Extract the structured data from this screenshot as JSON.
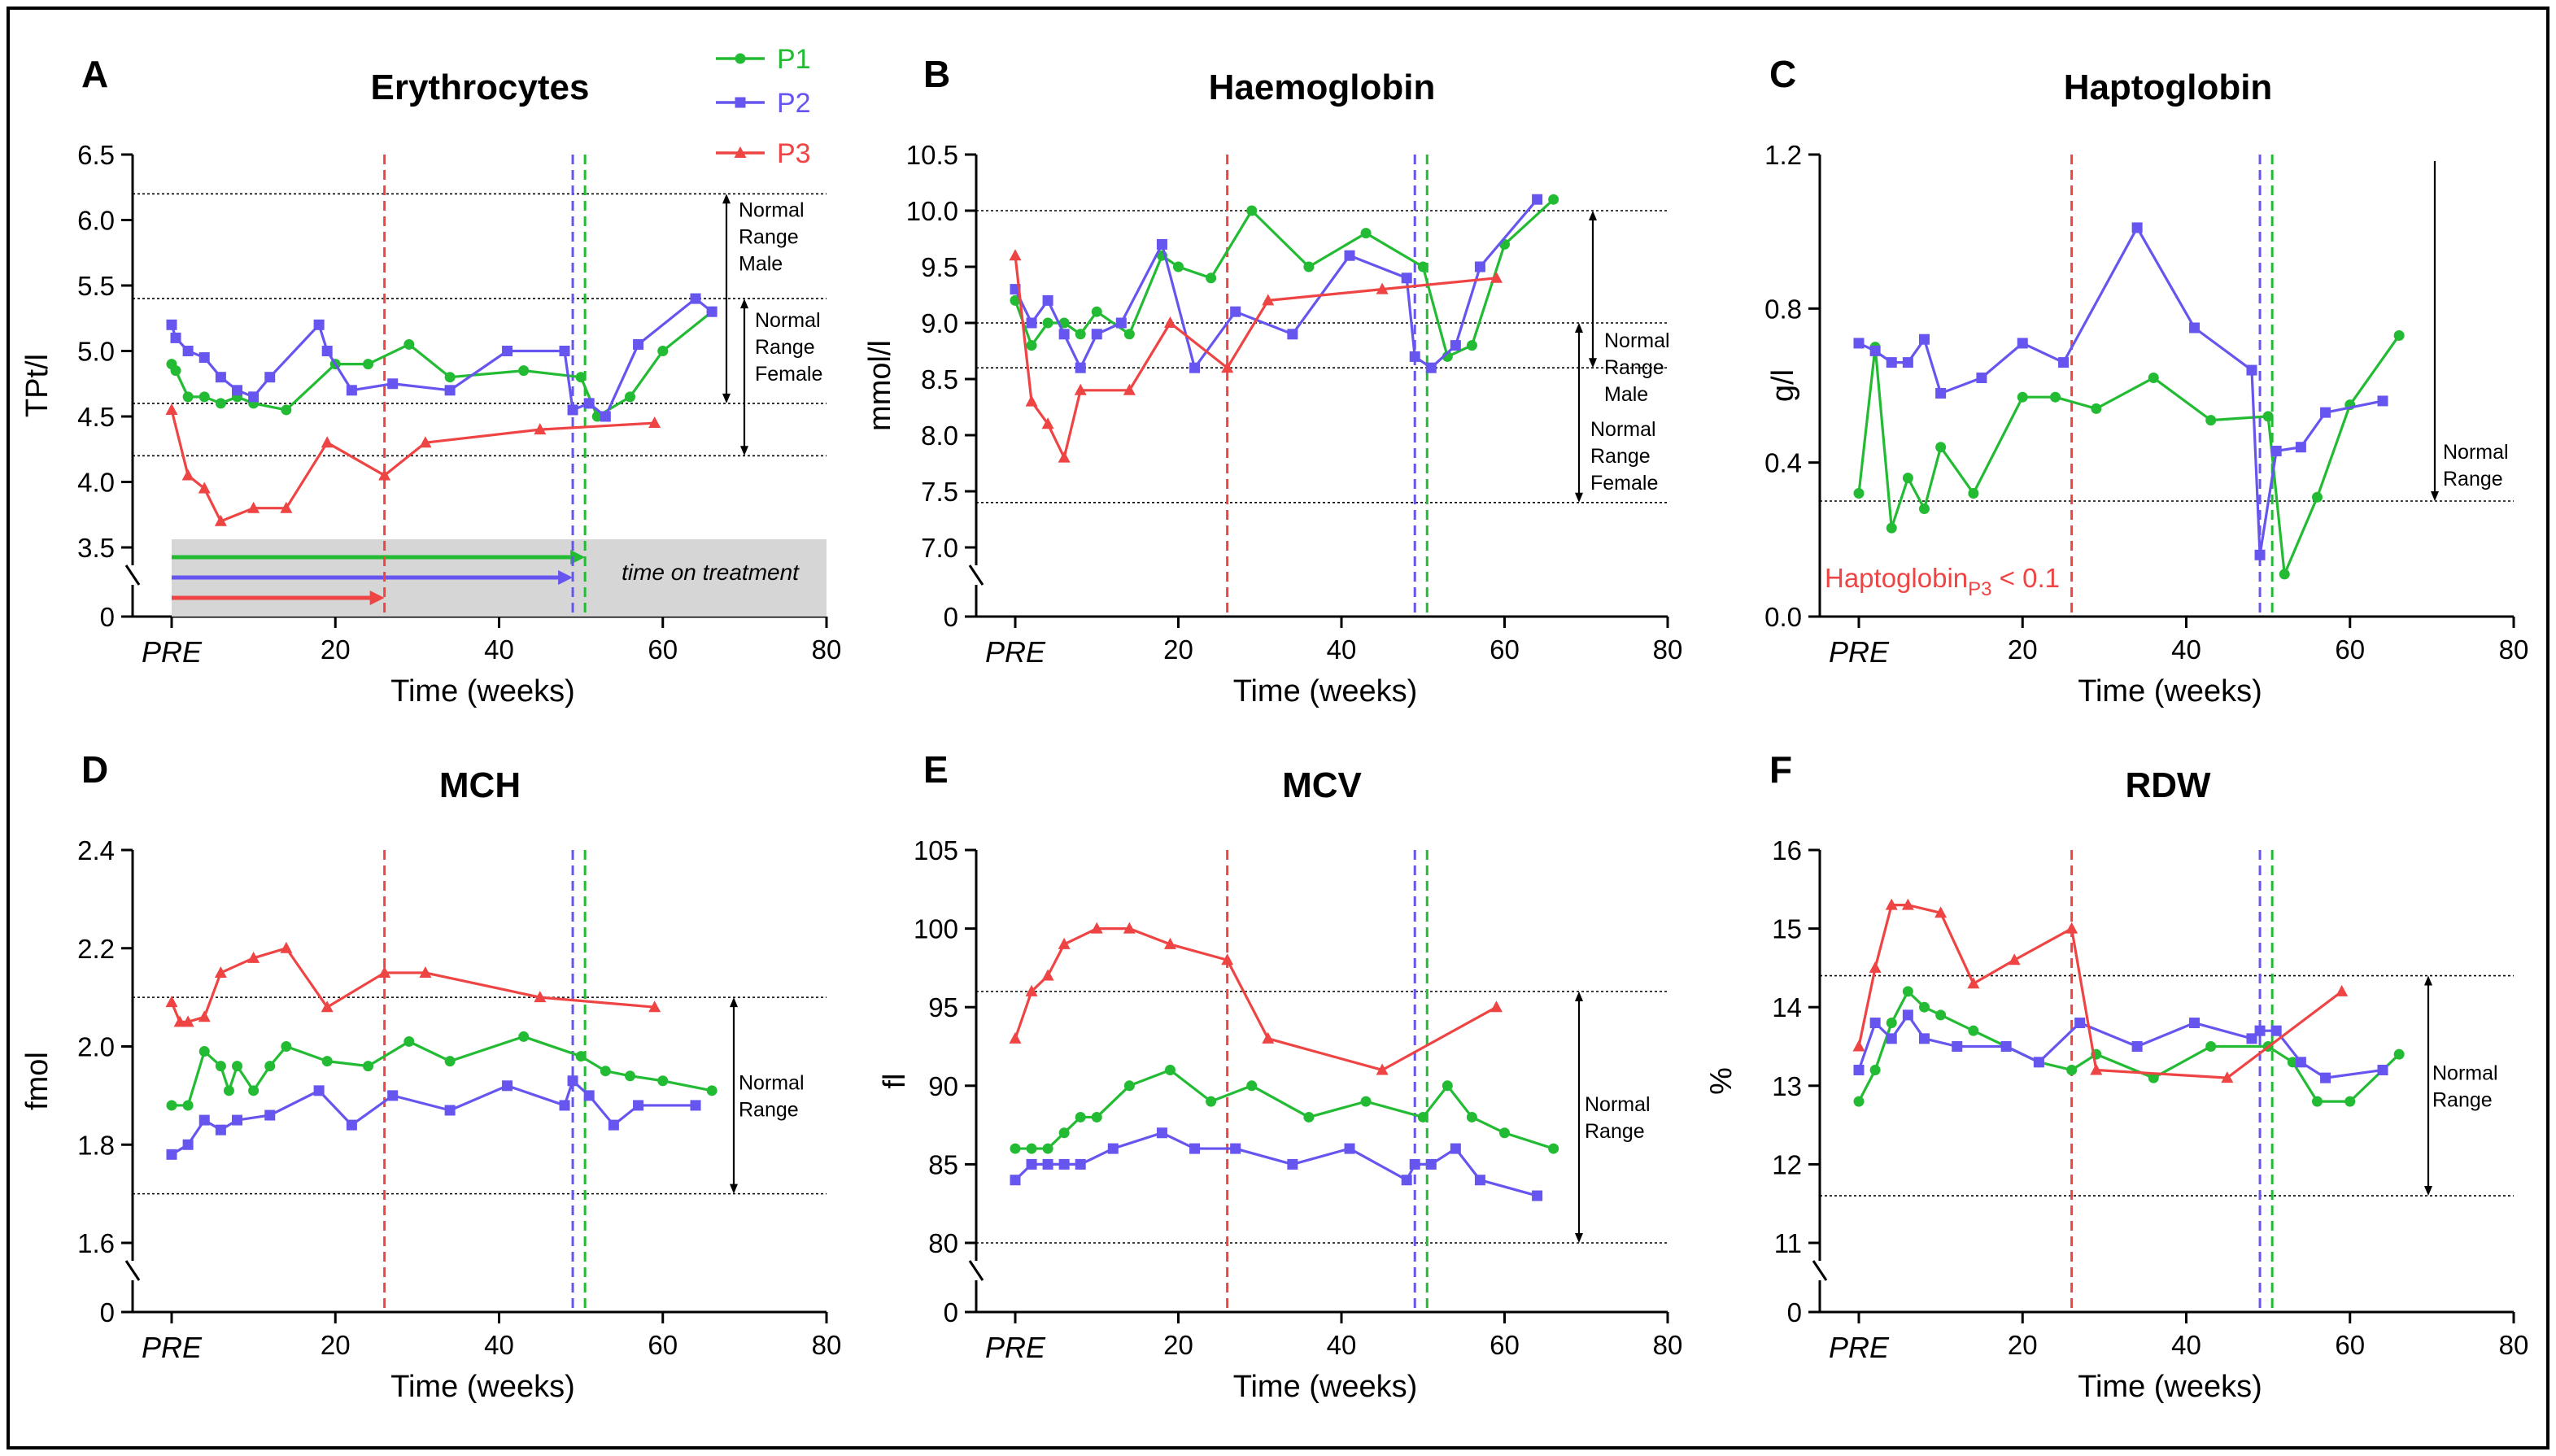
{
  "figure": {
    "x_axis_label": "Time (weeks)",
    "pre_label": "PRE",
    "x_ticks": [
      "20",
      "40",
      "60",
      "80"
    ],
    "zero_label": "0",
    "series_colors": {
      "P1": "#22bb33",
      "P2": "#6655ee",
      "P3": "#ee4444"
    },
    "legend": [
      {
        "name": "P1",
        "color": "#22bb33",
        "marker": "circle"
      },
      {
        "name": "P2",
        "color": "#6655ee",
        "marker": "square"
      },
      {
        "name": "P3",
        "color": "#ee4444",
        "marker": "triangle"
      }
    ],
    "treatment_stop_lines": {
      "P3": 26,
      "P2": 49,
      "P1": 50.5
    }
  },
  "chart_data": [
    {
      "id": "A",
      "letter": "A",
      "title": "Erythrocytes",
      "type": "line",
      "ylabel": "TPt/l",
      "ylim": [
        3.5,
        6.5
      ],
      "yticks": [
        "3.5",
        "4.0",
        "4.5",
        "5.0",
        "5.5",
        "6.0",
        "6.5"
      ],
      "normal_ranges": [
        {
          "low": 4.6,
          "high": 6.2,
          "lines": [
            "Normal",
            "Range",
            "Male"
          ]
        },
        {
          "low": 4.2,
          "high": 5.4,
          "lines": [
            "Normal",
            "Range",
            "Female"
          ]
        }
      ],
      "treatment_annotation": "time on treatment",
      "treatment_durations": {
        "P1": 50.5,
        "P2": 49,
        "P3": 26
      },
      "series": [
        {
          "name": "P1",
          "x": [
            0,
            0.5,
            2,
            4,
            6,
            8,
            10,
            14,
            20,
            24,
            29,
            34,
            43,
            50,
            52,
            56,
            60,
            66
          ],
          "values": [
            4.9,
            4.85,
            4.65,
            4.65,
            4.6,
            4.65,
            4.6,
            4.55,
            4.9,
            4.9,
            5.05,
            4.8,
            4.85,
            4.8,
            4.5,
            4.65,
            5.0,
            5.3
          ]
        },
        {
          "name": "P2",
          "x": [
            0,
            0.5,
            2,
            4,
            6,
            8,
            10,
            12,
            18,
            19,
            22,
            27,
            34,
            41,
            48,
            49,
            51,
            53,
            57,
            64,
            66
          ],
          "values": [
            5.2,
            5.1,
            5.0,
            4.95,
            4.8,
            4.7,
            4.65,
            4.8,
            5.2,
            5.0,
            4.7,
            4.75,
            4.7,
            5.0,
            5.0,
            4.55,
            4.6,
            4.5,
            5.05,
            5.4,
            5.3
          ]
        },
        {
          "name": "P3",
          "x": [
            0,
            2,
            4,
            6,
            10,
            14,
            19,
            26,
            31,
            45,
            59
          ],
          "values": [
            4.55,
            4.05,
            3.95,
            3.7,
            3.8,
            3.8,
            4.3,
            4.05,
            4.3,
            4.4,
            4.45
          ]
        }
      ]
    },
    {
      "id": "B",
      "letter": "B",
      "title": "Haemoglobin",
      "type": "line",
      "ylabel": "mmol/l",
      "ylim": [
        7.0,
        10.5
      ],
      "yticks": [
        "7.0",
        "7.5",
        "8.0",
        "8.5",
        "9.0",
        "9.5",
        "10.0",
        "10.5"
      ],
      "normal_ranges": [
        {
          "low": 8.6,
          "high": 10.0,
          "lines": [
            "Normal",
            "Range",
            "Male"
          ]
        },
        {
          "low": 7.4,
          "high": 9.0,
          "lines": [
            "Normal",
            "Range",
            "Female"
          ]
        }
      ],
      "series": [
        {
          "name": "P1",
          "x": [
            0,
            2,
            4,
            6,
            8,
            10,
            14,
            18,
            20,
            24,
            29,
            36,
            43,
            50,
            53,
            56,
            60,
            66
          ],
          "values": [
            9.2,
            8.8,
            9.0,
            9.0,
            8.9,
            9.1,
            8.9,
            9.6,
            9.5,
            9.4,
            10.0,
            9.5,
            9.8,
            9.5,
            8.7,
            8.8,
            9.7,
            10.1
          ]
        },
        {
          "name": "P2",
          "x": [
            0,
            2,
            4,
            6,
            8,
            10,
            13,
            18,
            22,
            27,
            34,
            41,
            48,
            49,
            51,
            54,
            57,
            64
          ],
          "values": [
            9.3,
            9.0,
            9.2,
            8.9,
            8.6,
            8.9,
            9.0,
            9.7,
            8.6,
            9.1,
            8.9,
            9.6,
            9.4,
            8.7,
            8.6,
            8.8,
            9.5,
            10.1
          ]
        },
        {
          "name": "P3",
          "x": [
            0,
            2,
            4,
            6,
            8,
            14,
            19,
            26,
            31,
            45,
            59
          ],
          "values": [
            9.6,
            8.3,
            8.1,
            7.8,
            8.4,
            8.4,
            9.0,
            8.6,
            9.2,
            9.3,
            9.4
          ]
        }
      ]
    },
    {
      "id": "C",
      "letter": "C",
      "title": "Haptoglobin",
      "type": "line",
      "ylabel": "g/l",
      "ylim": [
        0.0,
        1.2
      ],
      "yticks": [
        "0.0",
        "0.4",
        "0.8",
        "1.2"
      ],
      "normal_ranges": [
        {
          "low": 0.3,
          "high": null,
          "lines": [
            "Normal",
            "Range"
          ]
        }
      ],
      "annotation": {
        "text": "Haptoglobin",
        "sub": "P3",
        "suffix": " < 0.1",
        "color": "#ee4444"
      },
      "series": [
        {
          "name": "P1",
          "x": [
            0,
            2,
            4,
            6,
            8,
            10,
            14,
            20,
            24,
            29,
            36,
            43,
            50,
            52,
            56,
            60,
            66
          ],
          "values": [
            0.32,
            0.7,
            0.23,
            0.36,
            0.28,
            0.44,
            0.32,
            0.57,
            0.57,
            0.54,
            0.62,
            0.51,
            0.52,
            0.11,
            0.31,
            0.55,
            0.73
          ]
        },
        {
          "name": "P2",
          "x": [
            0,
            2,
            4,
            6,
            8,
            10,
            15,
            20,
            25,
            34,
            41,
            48,
            49,
            51,
            54,
            57,
            64
          ],
          "values": [
            0.71,
            0.69,
            0.66,
            0.66,
            0.72,
            0.58,
            0.62,
            0.71,
            0.66,
            1.01,
            0.75,
            0.64,
            0.16,
            0.43,
            0.44,
            0.53,
            0.56
          ]
        }
      ]
    },
    {
      "id": "D",
      "letter": "D",
      "title": "MCH",
      "type": "line",
      "ylabel": "fmol",
      "ylim": [
        1.6,
        2.4
      ],
      "yticks": [
        "1.6",
        "1.8",
        "2.0",
        "2.2",
        "2.4"
      ],
      "normal_ranges": [
        {
          "low": 1.7,
          "high": 2.1,
          "lines": [
            "Normal",
            "Range"
          ]
        }
      ],
      "series": [
        {
          "name": "P1",
          "x": [
            0,
            2,
            4,
            6,
            7,
            8,
            10,
            12,
            14,
            19,
            24,
            29,
            34,
            43,
            50,
            53,
            56,
            60,
            66
          ],
          "values": [
            1.88,
            1.88,
            1.99,
            1.96,
            1.91,
            1.96,
            1.91,
            1.96,
            2.0,
            1.97,
            1.96,
            2.01,
            1.97,
            2.02,
            1.98,
            1.95,
            1.94,
            1.93,
            1.91
          ]
        },
        {
          "name": "P2",
          "x": [
            0,
            2,
            4,
            6,
            8,
            12,
            18,
            22,
            27,
            34,
            41,
            48,
            49,
            51,
            54,
            57,
            64
          ],
          "values": [
            1.78,
            1.8,
            1.85,
            1.83,
            1.85,
            1.86,
            1.91,
            1.84,
            1.9,
            1.87,
            1.92,
            1.88,
            1.93,
            1.9,
            1.84,
            1.88,
            1.88
          ]
        },
        {
          "name": "P3",
          "x": [
            0,
            1,
            2,
            4,
            6,
            10,
            14,
            19,
            26,
            31,
            45,
            59
          ],
          "values": [
            2.09,
            2.05,
            2.05,
            2.06,
            2.15,
            2.18,
            2.2,
            2.08,
            2.15,
            2.15,
            2.1,
            2.08
          ]
        }
      ]
    },
    {
      "id": "E",
      "letter": "E",
      "title": "MCV",
      "type": "line",
      "ylabel": "fl",
      "ylim": [
        80,
        105
      ],
      "yticks": [
        "80",
        "85",
        "90",
        "95",
        "100",
        "105"
      ],
      "normal_ranges": [
        {
          "low": 80,
          "high": 96,
          "lines": [
            "Normal",
            "Range"
          ]
        }
      ],
      "series": [
        {
          "name": "P1",
          "x": [
            0,
            2,
            4,
            6,
            8,
            10,
            14,
            19,
            24,
            29,
            36,
            43,
            50,
            53,
            56,
            60,
            66
          ],
          "values": [
            86,
            86,
            86,
            87,
            88,
            88,
            90,
            91,
            89,
            90,
            88,
            89,
            88,
            90,
            88,
            87,
            86
          ]
        },
        {
          "name": "P2",
          "x": [
            0,
            2,
            4,
            6,
            8,
            12,
            18,
            22,
            27,
            34,
            41,
            48,
            49,
            51,
            54,
            57,
            64
          ],
          "values": [
            84,
            85,
            85,
            85,
            85,
            86,
            87,
            86,
            86,
            85,
            86,
            84,
            85,
            85,
            86,
            84,
            83
          ]
        },
        {
          "name": "P3",
          "x": [
            0,
            2,
            4,
            6,
            10,
            14,
            19,
            26,
            31,
            45,
            59
          ],
          "values": [
            93,
            96,
            97,
            99,
            100,
            100,
            99,
            98,
            93,
            91,
            95
          ]
        }
      ]
    },
    {
      "id": "F",
      "letter": "F",
      "title": "RDW",
      "type": "line",
      "ylabel": "%",
      "ylim": [
        11,
        16
      ],
      "yticks": [
        "11",
        "12",
        "13",
        "14",
        "15",
        "16"
      ],
      "normal_ranges": [
        {
          "low": 11.6,
          "high": 14.4,
          "lines": [
            "Normal",
            "Range"
          ]
        }
      ],
      "series": [
        {
          "name": "P1",
          "x": [
            0,
            2,
            4,
            6,
            8,
            10,
            14,
            18,
            22,
            26,
            29,
            36,
            43,
            50,
            53,
            56,
            60,
            66
          ],
          "values": [
            12.8,
            13.2,
            13.8,
            14.2,
            14.0,
            13.9,
            13.7,
            13.5,
            13.3,
            13.2,
            13.4,
            13.1,
            13.5,
            13.5,
            13.3,
            12.8,
            12.8,
            13.4
          ]
        },
        {
          "name": "P2",
          "x": [
            0,
            2,
            4,
            6,
            8,
            12,
            18,
            22,
            27,
            34,
            41,
            48,
            49,
            51,
            54,
            57,
            64
          ],
          "values": [
            13.2,
            13.8,
            13.6,
            13.9,
            13.6,
            13.5,
            13.5,
            13.3,
            13.8,
            13.5,
            13.8,
            13.6,
            13.7,
            13.7,
            13.3,
            13.1,
            13.2
          ]
        },
        {
          "name": "P3",
          "x": [
            0,
            2,
            4,
            6,
            10,
            14,
            19,
            26,
            29,
            45,
            59
          ],
          "values": [
            13.5,
            14.5,
            15.3,
            15.3,
            15.2,
            14.3,
            14.6,
            15.0,
            13.2,
            13.1,
            14.2
          ]
        }
      ]
    }
  ]
}
